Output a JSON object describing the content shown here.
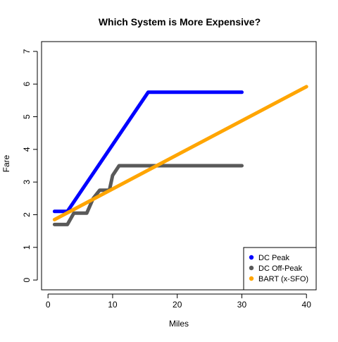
{
  "chart_data": {
    "type": "line",
    "title": "Which System is More Expensive?",
    "xlabel": "Miles",
    "ylabel": "Fare",
    "xlim": [
      -1,
      41.5
    ],
    "ylim": [
      -0.3,
      7.3
    ],
    "xticks": [
      0,
      10,
      20,
      30,
      40
    ],
    "xtick_labels": [
      "0",
      "10",
      "20",
      "30",
      "40"
    ],
    "yticks": [
      0,
      1,
      2,
      3,
      4,
      5,
      6,
      7
    ],
    "ytick_labels": [
      "0",
      "1",
      "2",
      "3",
      "4",
      "5",
      "6",
      "7"
    ],
    "grid": false,
    "legend_position": "bottom-right",
    "series": [
      {
        "name": "DC Peak",
        "color": "#0000ff",
        "x": [
          1,
          3,
          15.5,
          30
        ],
        "y": [
          2.1,
          2.1,
          5.75,
          5.75
        ]
      },
      {
        "name": "DC Off-Peak",
        "color": "#595959",
        "x": [
          1,
          3,
          4,
          6,
          7,
          8,
          9.5,
          10,
          11,
          11.5,
          30
        ],
        "y": [
          1.7,
          1.7,
          2.05,
          2.05,
          2.5,
          2.75,
          2.75,
          3.2,
          3.5,
          3.5,
          3.5
        ]
      },
      {
        "name": "BART (x-SFO)",
        "color": "#ffa500",
        "x": [
          1,
          40
        ],
        "y": [
          1.85,
          5.92
        ]
      }
    ]
  }
}
